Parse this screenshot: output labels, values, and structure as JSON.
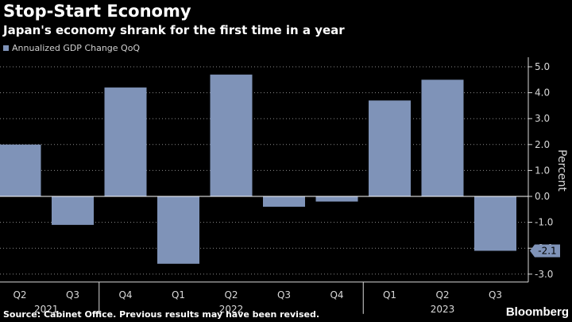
{
  "header": {
    "title": "Stop-Start Economy",
    "subtitle": "Japan's economy shrank for the first time in a year"
  },
  "footer": {
    "source": "Source: Cabinet Office. Previous results may have been revised.",
    "brand": "Bloomberg"
  },
  "colors": {
    "bar": "#7f93b8",
    "background": "#000000",
    "gridline": "#8a8a8a",
    "zeroline": "#ffffff",
    "text": "#d8d8d8"
  },
  "chart_data": {
    "type": "bar",
    "title": "Stop-Start Economy",
    "subtitle": "Japan's economy shrank for the first time in a year",
    "categories": [
      "Q2",
      "Q3",
      "Q4",
      "Q1",
      "Q2",
      "Q3",
      "Q4",
      "Q1",
      "Q2",
      "Q3"
    ],
    "year_groups": [
      {
        "label": "2021",
        "categories": [
          "Q2",
          "Q3"
        ]
      },
      {
        "label": "2022",
        "categories": [
          "Q4",
          "Q1",
          "Q2",
          "Q3",
          "Q4"
        ]
      },
      {
        "label": "2023",
        "categories": [
          "Q1",
          "Q2",
          "Q3"
        ]
      }
    ],
    "series": [
      {
        "name": "Annualized GDP Change QoQ",
        "values": [
          2.0,
          -1.1,
          4.2,
          -2.6,
          4.7,
          -0.4,
          -0.2,
          3.7,
          4.5,
          -2.1
        ]
      }
    ],
    "ylabel": "Percent",
    "xlabel": "",
    "ylim": [
      -3.0,
      5.0
    ],
    "yticks": [
      "5.0",
      "4.0",
      "3.0",
      "2.0",
      "1.0",
      "0.0",
      "-1.0",
      "-2.0",
      "-3.0"
    ],
    "highlight": {
      "label": "-2.1",
      "category_index": 9
    },
    "grid": true,
    "legend": "top-left",
    "y_axis_side": "right"
  }
}
